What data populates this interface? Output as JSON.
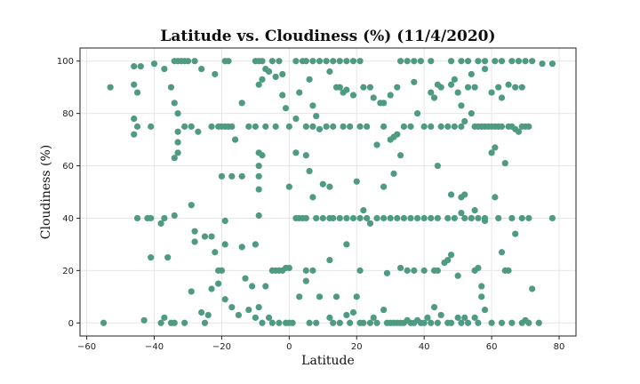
{
  "chart_data": {
    "type": "scatter",
    "title": "Latitude vs. Cloudiness (%) (11/4/2020)",
    "xlabel": "Latitude",
    "ylabel": "Cloudiness (%)",
    "xlim": [
      -62,
      85
    ],
    "ylim": [
      -5,
      105
    ],
    "xticks": [
      -60,
      -40,
      -20,
      0,
      20,
      40,
      60,
      80
    ],
    "yticks": [
      0,
      20,
      40,
      60,
      80,
      100
    ],
    "grid": true,
    "marker_color": "#4e9a82",
    "points": [
      [
        -55,
        0
      ],
      [
        -53,
        90
      ],
      [
        -46,
        98
      ],
      [
        -44,
        98
      ],
      [
        -40,
        99
      ],
      [
        -37,
        97
      ],
      [
        -34,
        100
      ],
      [
        -33,
        100
      ],
      [
        -32,
        100
      ],
      [
        -31,
        100
      ],
      [
        -30,
        100
      ],
      [
        -28,
        100
      ],
      [
        -26,
        97
      ],
      [
        -22,
        95
      ],
      [
        -19,
        100
      ],
      [
        -18,
        100
      ],
      [
        -10,
        100
      ],
      [
        -9,
        100
      ],
      [
        -8,
        100
      ],
      [
        -7,
        97
      ],
      [
        -5,
        100
      ],
      [
        -3,
        100
      ],
      [
        -2,
        95
      ],
      [
        2,
        100
      ],
      [
        4,
        100
      ],
      [
        5,
        100
      ],
      [
        7,
        100
      ],
      [
        9,
        100
      ],
      [
        11,
        100
      ],
      [
        13,
        100
      ],
      [
        15,
        100
      ],
      [
        17,
        100
      ],
      [
        19,
        100
      ],
      [
        21,
        100
      ],
      [
        33,
        100
      ],
      [
        35,
        100
      ],
      [
        37,
        100
      ],
      [
        39,
        100
      ],
      [
        42,
        100
      ],
      [
        48,
        100
      ],
      [
        51,
        100
      ],
      [
        53,
        100
      ],
      [
        56,
        100
      ],
      [
        58,
        100
      ],
      [
        61,
        100
      ],
      [
        63,
        100
      ],
      [
        66,
        100
      ],
      [
        68,
        100
      ],
      [
        70,
        100
      ],
      [
        72,
        100
      ],
      [
        75,
        99
      ],
      [
        78,
        99
      ],
      [
        -46,
        91
      ],
      [
        -45,
        88
      ],
      [
        -35,
        90
      ],
      [
        -34,
        84
      ],
      [
        -33,
        80
      ],
      [
        -9,
        91
      ],
      [
        -8,
        93
      ],
      [
        -6,
        96
      ],
      [
        -4,
        94
      ],
      [
        -2,
        87
      ],
      [
        -1,
        82
      ],
      [
        3,
        88
      ],
      [
        6,
        93
      ],
      [
        7,
        83
      ],
      [
        8,
        79
      ],
      [
        12,
        96
      ],
      [
        14,
        90
      ],
      [
        15,
        90
      ],
      [
        16,
        88
      ],
      [
        17,
        89
      ],
      [
        19,
        87
      ],
      [
        22,
        90
      ],
      [
        24,
        90
      ],
      [
        25,
        86
      ],
      [
        27,
        84
      ],
      [
        28,
        84
      ],
      [
        30,
        87
      ],
      [
        32,
        90
      ],
      [
        37,
        92
      ],
      [
        42,
        88
      ],
      [
        43,
        86
      ],
      [
        44,
        91
      ],
      [
        45,
        90
      ],
      [
        48,
        91
      ],
      [
        49,
        93
      ],
      [
        50,
        88
      ],
      [
        51,
        83
      ],
      [
        53,
        90
      ],
      [
        54,
        95
      ],
      [
        55,
        90
      ],
      [
        58,
        97
      ],
      [
        60,
        88
      ],
      [
        62,
        90
      ],
      [
        63,
        86
      ],
      [
        65,
        91
      ],
      [
        67,
        90
      ],
      [
        69,
        90
      ],
      [
        -46,
        78
      ],
      [
        -46,
        72
      ],
      [
        -45,
        75
      ],
      [
        -41,
        75
      ],
      [
        -33,
        73
      ],
      [
        -31,
        75
      ],
      [
        -29,
        75
      ],
      [
        -27,
        73
      ],
      [
        -23,
        75
      ],
      [
        -21,
        75
      ],
      [
        -20,
        75
      ],
      [
        -19,
        75
      ],
      [
        -18,
        75
      ],
      [
        -17,
        75
      ],
      [
        -16,
        70
      ],
      [
        -14,
        84
      ],
      [
        -12,
        75
      ],
      [
        -10,
        75
      ],
      [
        -7,
        75
      ],
      [
        -4,
        75
      ],
      [
        0,
        75
      ],
      [
        2,
        78
      ],
      [
        5,
        75
      ],
      [
        7,
        75
      ],
      [
        9,
        74
      ],
      [
        11,
        75
      ],
      [
        13,
        75
      ],
      [
        16,
        75
      ],
      [
        18,
        75
      ],
      [
        21,
        75
      ],
      [
        23,
        75
      ],
      [
        26,
        68
      ],
      [
        28,
        75
      ],
      [
        30,
        70
      ],
      [
        31,
        71
      ],
      [
        32,
        72
      ],
      [
        34,
        75
      ],
      [
        36,
        75
      ],
      [
        38,
        80
      ],
      [
        40,
        75
      ],
      [
        42,
        75
      ],
      [
        45,
        75
      ],
      [
        47,
        75
      ],
      [
        49,
        75
      ],
      [
        51,
        75
      ],
      [
        52,
        77
      ],
      [
        54,
        80
      ],
      [
        55,
        75
      ],
      [
        56,
        75
      ],
      [
        57,
        75
      ],
      [
        58,
        75
      ],
      [
        59,
        75
      ],
      [
        60,
        75
      ],
      [
        61,
        75
      ],
      [
        62,
        75
      ],
      [
        63,
        75
      ],
      [
        65,
        75
      ],
      [
        66,
        75
      ],
      [
        67,
        74
      ],
      [
        68,
        73
      ],
      [
        69,
        75
      ],
      [
        70,
        75
      ],
      [
        71,
        75
      ],
      [
        -34,
        63
      ],
      [
        -33,
        65
      ],
      [
        -33,
        69
      ],
      [
        -9,
        65
      ],
      [
        -8,
        64
      ],
      [
        -9,
        60
      ],
      [
        -9,
        56
      ],
      [
        -9,
        51
      ],
      [
        0,
        52
      ],
      [
        2,
        65
      ],
      [
        5,
        64
      ],
      [
        6,
        58
      ],
      [
        7,
        48
      ],
      [
        10,
        53
      ],
      [
        12,
        52
      ],
      [
        20,
        54
      ],
      [
        22,
        43
      ],
      [
        24,
        38
      ],
      [
        28,
        52
      ],
      [
        31,
        57
      ],
      [
        33,
        64
      ],
      [
        44,
        60
      ],
      [
        48,
        49
      ],
      [
        51,
        48
      ],
      [
        52,
        49
      ],
      [
        55,
        43
      ],
      [
        58,
        39
      ],
      [
        60,
        65
      ],
      [
        61,
        67
      ],
      [
        61,
        48
      ],
      [
        64,
        61
      ],
      [
        -45,
        40
      ],
      [
        -42,
        40
      ],
      [
        -41,
        40
      ],
      [
        -38,
        38
      ],
      [
        -37,
        40
      ],
      [
        -34,
        41
      ],
      [
        -29,
        45
      ],
      [
        -20,
        56
      ],
      [
        -19,
        39
      ],
      [
        -17,
        56
      ],
      [
        -14,
        56
      ],
      [
        -9,
        41
      ],
      [
        2,
        40
      ],
      [
        3,
        40
      ],
      [
        4,
        40
      ],
      [
        5,
        40
      ],
      [
        8,
        40
      ],
      [
        10,
        40
      ],
      [
        12,
        40
      ],
      [
        13,
        40
      ],
      [
        15,
        40
      ],
      [
        17,
        40
      ],
      [
        19,
        40
      ],
      [
        21,
        40
      ],
      [
        23,
        40
      ],
      [
        26,
        40
      ],
      [
        28,
        40
      ],
      [
        30,
        40
      ],
      [
        32,
        40
      ],
      [
        34,
        40
      ],
      [
        36,
        40
      ],
      [
        38,
        40
      ],
      [
        40,
        40
      ],
      [
        42,
        40
      ],
      [
        44,
        40
      ],
      [
        47,
        40
      ],
      [
        49,
        40
      ],
      [
        51,
        42
      ],
      [
        52,
        40
      ],
      [
        54,
        40
      ],
      [
        56,
        40
      ],
      [
        58,
        40
      ],
      [
        62,
        40
      ],
      [
        66,
        40
      ],
      [
        69,
        40
      ],
      [
        71,
        40
      ],
      [
        78,
        40
      ],
      [
        -41,
        25
      ],
      [
        -36,
        25
      ],
      [
        -28,
        31
      ],
      [
        -28,
        35
      ],
      [
        -25,
        33
      ],
      [
        -23,
        33
      ],
      [
        -22,
        27
      ],
      [
        -21,
        20
      ],
      [
        -20,
        20
      ],
      [
        -19,
        30
      ],
      [
        -14,
        29
      ],
      [
        -10,
        30
      ],
      [
        -7,
        14
      ],
      [
        -5,
        20
      ],
      [
        -4,
        20
      ],
      [
        -3,
        20
      ],
      [
        -2,
        20
      ],
      [
        -1,
        21
      ],
      [
        0,
        21
      ],
      [
        5,
        20
      ],
      [
        7,
        20
      ],
      [
        12,
        24
      ],
      [
        17,
        30
      ],
      [
        21,
        20
      ],
      [
        29,
        19
      ],
      [
        33,
        21
      ],
      [
        35,
        20
      ],
      [
        37,
        20
      ],
      [
        40,
        20
      ],
      [
        43,
        20
      ],
      [
        44,
        20
      ],
      [
        46,
        23
      ],
      [
        47,
        24
      ],
      [
        48,
        26
      ],
      [
        50,
        18
      ],
      [
        55,
        20
      ],
      [
        56,
        21
      ],
      [
        57,
        14
      ],
      [
        63,
        27
      ],
      [
        64,
        20
      ],
      [
        65,
        20
      ],
      [
        67,
        34
      ],
      [
        72,
        13
      ],
      [
        -43,
        1
      ],
      [
        -38,
        0
      ],
      [
        -37,
        2
      ],
      [
        -35,
        0
      ],
      [
        -34,
        0
      ],
      [
        -31,
        0
      ],
      [
        -29,
        12
      ],
      [
        -26,
        4
      ],
      [
        -25,
        0
      ],
      [
        -24,
        3
      ],
      [
        -23,
        13
      ],
      [
        -21,
        15
      ],
      [
        -19,
        9
      ],
      [
        -17,
        6
      ],
      [
        -15,
        3
      ],
      [
        -13,
        17
      ],
      [
        -12,
        5
      ],
      [
        -11,
        14
      ],
      [
        -10,
        2
      ],
      [
        -9,
        6
      ],
      [
        -8,
        0
      ],
      [
        -6,
        2
      ],
      [
        -5,
        0
      ],
      [
        -3,
        0
      ],
      [
        -1,
        0
      ],
      [
        0,
        0
      ],
      [
        1,
        0
      ],
      [
        3,
        10
      ],
      [
        5,
        16
      ],
      [
        6,
        0
      ],
      [
        8,
        0
      ],
      [
        9,
        10
      ],
      [
        12,
        2
      ],
      [
        13,
        0
      ],
      [
        14,
        10
      ],
      [
        15,
        0
      ],
      [
        17,
        3
      ],
      [
        18,
        0
      ],
      [
        19,
        4
      ],
      [
        20,
        10
      ],
      [
        21,
        0
      ],
      [
        22,
        0
      ],
      [
        24,
        0
      ],
      [
        25,
        2
      ],
      [
        26,
        0
      ],
      [
        28,
        5
      ],
      [
        29,
        0
      ],
      [
        30,
        0
      ],
      [
        31,
        0
      ],
      [
        32,
        0
      ],
      [
        33,
        0
      ],
      [
        34,
        0
      ],
      [
        35,
        1
      ],
      [
        36,
        0
      ],
      [
        37,
        0
      ],
      [
        38,
        1
      ],
      [
        39,
        0
      ],
      [
        40,
        0
      ],
      [
        41,
        2
      ],
      [
        42,
        0
      ],
      [
        43,
        6
      ],
      [
        44,
        0
      ],
      [
        45,
        3
      ],
      [
        47,
        0
      ],
      [
        48,
        0
      ],
      [
        50,
        2
      ],
      [
        51,
        0
      ],
      [
        52,
        2
      ],
      [
        53,
        0
      ],
      [
        55,
        2
      ],
      [
        56,
        0
      ],
      [
        57,
        10
      ],
      [
        58,
        5
      ],
      [
        60,
        0
      ],
      [
        63,
        0
      ],
      [
        66,
        0
      ],
      [
        69,
        0
      ],
      [
        70,
        1
      ],
      [
        71,
        0
      ],
      [
        74,
        0
      ]
    ]
  }
}
